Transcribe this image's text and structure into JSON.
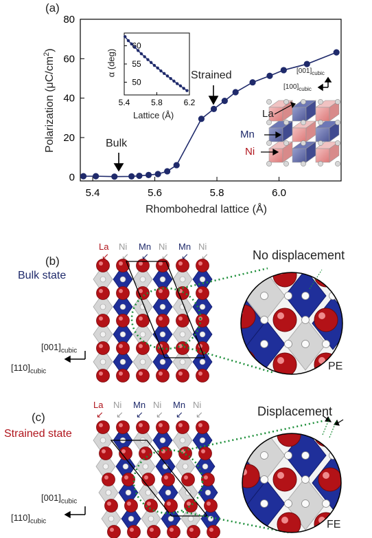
{
  "panels": {
    "a": "(a)",
    "b": "(b)",
    "c": "(c)"
  },
  "chart_data": {
    "type": "line",
    "xlabel": "Rhombohedral lattice (Å)",
    "ylabel_main": "Polarization (μC/cm",
    "ylabel_sup": "2",
    "ylabel_end": ")",
    "xlim": [
      5.36,
      6.2
    ],
    "ylim": [
      -2,
      80
    ],
    "xticks": [
      "5.4",
      "5.6",
      "5.8",
      "6.0"
    ],
    "xtick_values": [
      5.4,
      5.6,
      5.8,
      6.0
    ],
    "yticks": [
      "0",
      "20",
      "40",
      "60",
      "80"
    ],
    "ytick_values": [
      0,
      20,
      40,
      60,
      80
    ],
    "color": "#1f2a6b",
    "x": [
      5.37,
      5.41,
      5.47,
      5.525,
      5.55,
      5.58,
      5.61,
      5.64,
      5.67,
      5.75,
      5.79,
      5.825,
      5.86,
      5.915,
      5.97,
      6.015,
      6.09,
      6.185
    ],
    "y": [
      0.4,
      0.4,
      0.2,
      0.3,
      0.6,
      1.0,
      1.5,
      2.9,
      6.0,
      29.5,
      34.5,
      38.6,
      43.0,
      48.0,
      51.3,
      54.2,
      57.3,
      63.2
    ],
    "annotations": {
      "bulk": "Bulk",
      "strained": "Strained"
    },
    "inset": {
      "type": "line",
      "xlabel": "Lattice (Å)",
      "ylabel": "α (deg)",
      "xlim": [
        5.4,
        6.2
      ],
      "ylim": [
        46.5,
        63.5
      ],
      "xticks": [
        "5.4",
        "5.8",
        "6.2"
      ],
      "xtick_values": [
        5.4,
        5.8,
        6.2
      ],
      "yticks": [
        "50",
        "55",
        "60"
      ],
      "ytick_values": [
        50,
        55,
        60
      ],
      "x": [
        5.41,
        5.45,
        5.49,
        5.53,
        5.57,
        5.61,
        5.65,
        5.69,
        5.73,
        5.77,
        5.81,
        5.85,
        5.89,
        5.93,
        5.97,
        6.01,
        6.05,
        6.09,
        6.13,
        6.17
      ],
      "y": [
        62.5,
        61.4,
        60.5,
        59.6,
        58.7,
        57.8,
        57.0,
        56.2,
        55.4,
        54.6,
        53.9,
        53.1,
        52.4,
        51.7,
        51.0,
        50.3,
        49.6,
        49.0,
        48.3,
        47.7
      ]
    },
    "legend": {
      "La": "La",
      "Mn": "Mn",
      "Ni": "Ni",
      "axis1_main": "[001]",
      "axis1_sub": "cubic",
      "axis2_main": "[100]",
      "axis2_sub": "cubic"
    }
  },
  "panel_b": {
    "state": "Bulk state",
    "state_color": "#1f2a6b",
    "atoms": [
      "La",
      "Ni",
      "Mn",
      "Ni",
      "Mn",
      "Ni"
    ],
    "atom_colors": [
      "#b0141c",
      "#9a9a9a",
      "#1f2a6b",
      "#9a9a9a",
      "#1f2a6b",
      "#9a9a9a"
    ],
    "zoom_title": "No displacement",
    "phase": "PE",
    "axis1_main": "[001]",
    "axis1_sub": "cubic",
    "axis2_main": "[110]",
    "axis2_sub": "cubic"
  },
  "panel_c": {
    "state": "Strained state",
    "state_color": "#b0141c",
    "atoms": [
      "La",
      "Ni",
      "Mn",
      "Ni",
      "Mn",
      "Ni"
    ],
    "atom_colors": [
      "#b0141c",
      "#9a9a9a",
      "#1f2a6b",
      "#9a9a9a",
      "#1f2a6b",
      "#9a9a9a"
    ],
    "zoom_title": "Displacement",
    "phase": "FE",
    "axis1_main": "[001]",
    "axis1_sub": "cubic",
    "axis2_main": "[110]",
    "axis2_sub": "cubic"
  }
}
